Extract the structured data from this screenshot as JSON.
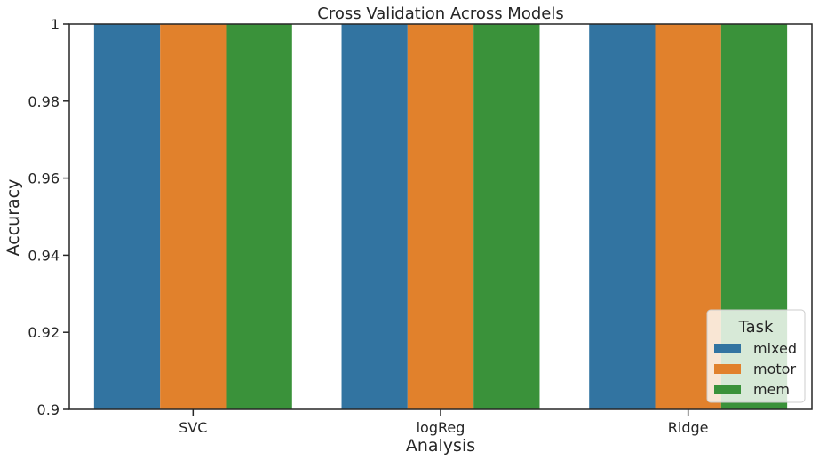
{
  "chart_data": {
    "type": "bar",
    "title": "Cross Validation Across Models",
    "xlabel": "Analysis",
    "ylabel": "Accuracy",
    "categories": [
      "SVC",
      "logReg",
      "Ridge"
    ],
    "series": [
      {
        "name": "mixed",
        "values": [
          1.0,
          1.0,
          1.0
        ],
        "color": "#3274a1"
      },
      {
        "name": "motor",
        "values": [
          1.0,
          1.0,
          1.0
        ],
        "color": "#e1812c"
      },
      {
        "name": "mem",
        "values": [
          1.0,
          1.0,
          1.0
        ],
        "color": "#3a923a"
      }
    ],
    "ylim": [
      0.9,
      1.0
    ],
    "yticks": [
      0.9,
      0.92,
      0.94,
      0.96,
      0.98,
      1.0
    ],
    "ytick_labels": [
      "0.9",
      "0.92",
      "0.94",
      "0.96",
      "0.98",
      "1"
    ],
    "grid": false,
    "legend": {
      "title": "Task",
      "placement": "bottom-right"
    }
  }
}
